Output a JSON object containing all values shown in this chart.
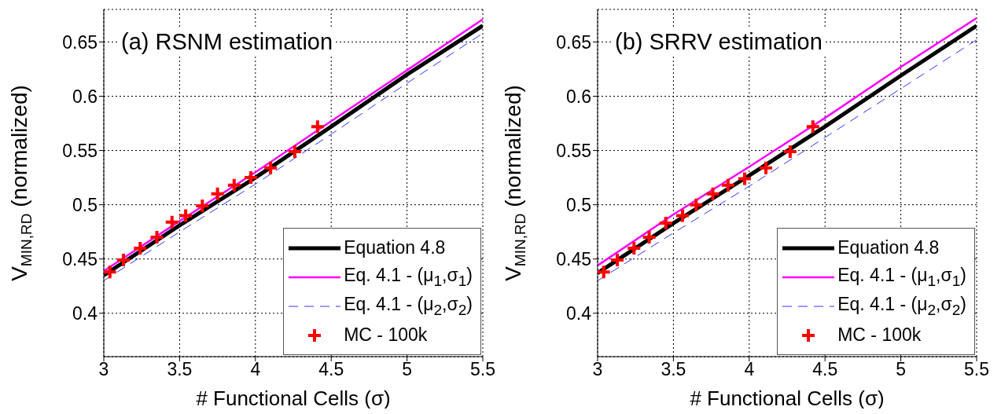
{
  "chart_data": [
    {
      "type": "line",
      "title": "(a) RSNM estimation",
      "xlabel": "# Functional Cells (σ)",
      "ylabel": "V$_{MIN,RD}$ (normalized)",
      "xlim": [
        3,
        5.5
      ],
      "ylim": [
        0.36,
        0.68
      ],
      "xticks": [
        3,
        3.5,
        4,
        4.5,
        5,
        5.5
      ],
      "yticks": [
        0.4,
        0.45,
        0.5,
        0.55,
        0.6,
        0.65
      ],
      "grid": true,
      "legend": "bottom right",
      "series": [
        {
          "name": "Equation 4.8",
          "color": "#000000",
          "line_style": "solid",
          "marker": "none",
          "x": [
            3,
            3.5,
            4,
            4.5,
            5,
            5.5
          ],
          "values": [
            0.435,
            0.481,
            0.525,
            0.572,
            0.62,
            0.665
          ]
        },
        {
          "name": "Eq. 4.1 - (μ$_{1}$,σ$_{1}$)",
          "color": "#ff00ff",
          "line_style": "solid",
          "marker": "none",
          "x": [
            3,
            3.5,
            4,
            4.5,
            5,
            5.5
          ],
          "values": [
            0.439,
            0.485,
            0.53,
            0.577,
            0.624,
            0.671
          ]
        },
        {
          "name": "Eq. 4.1 - (μ$_{2}$,σ$_{2}$)",
          "color": "#3333ff",
          "line_style": "dashed",
          "marker": "none",
          "x": [
            3,
            3.5,
            4,
            4.5,
            5,
            5.5
          ],
          "values": [
            0.43,
            0.475,
            0.519,
            0.565,
            0.612,
            0.658
          ]
        },
        {
          "name": "MC - 100k",
          "type": "scatter",
          "color": "#ff0000",
          "marker": "cross",
          "x": [
            3.04,
            3.13,
            3.24,
            3.35,
            3.45,
            3.54,
            3.65,
            3.75,
            3.86,
            3.97,
            4.1,
            4.26,
            4.41
          ],
          "values": [
            0.438,
            0.449,
            0.46,
            0.47,
            0.484,
            0.49,
            0.499,
            0.51,
            0.518,
            0.525,
            0.534,
            0.549,
            0.572
          ]
        }
      ]
    },
    {
      "type": "line",
      "title": "(b) SRRV estimation",
      "xlabel": "# Functional Cells (σ)",
      "ylabel": "V$_{MIN,RD}$ (normalized)",
      "xlim": [
        3,
        5.5
      ],
      "ylim": [
        0.36,
        0.68
      ],
      "xticks": [
        3,
        3.5,
        4,
        4.5,
        5,
        5.5
      ],
      "yticks": [
        0.4,
        0.45,
        0.5,
        0.55,
        0.6,
        0.65
      ],
      "grid": true,
      "legend": "bottom right",
      "series": [
        {
          "name": "Equation 4.8",
          "color": "#000000",
          "line_style": "solid",
          "marker": "none",
          "x": [
            3,
            3.5,
            4,
            4.5,
            5,
            5.5
          ],
          "values": [
            0.437,
            0.483,
            0.527,
            0.572,
            0.619,
            0.665
          ]
        },
        {
          "name": "Eq. 4.1 - (μ$_{1}$,σ$_{1}$)",
          "color": "#ff00ff",
          "line_style": "solid",
          "marker": "none",
          "x": [
            3,
            3.5,
            4,
            4.5,
            5,
            5.5
          ],
          "values": [
            0.444,
            0.491,
            0.535,
            0.58,
            0.627,
            0.672
          ]
        },
        {
          "name": "Eq. 4.1 - (μ$_{2}$,σ$_{2}$)",
          "color": "#3333ff",
          "line_style": "dashed",
          "marker": "none",
          "x": [
            3,
            3.5,
            4,
            4.5,
            5,
            5.5
          ],
          "values": [
            0.43,
            0.474,
            0.517,
            0.562,
            0.607,
            0.652
          ]
        },
        {
          "name": "MC - 100k",
          "type": "scatter",
          "color": "#ff0000",
          "marker": "cross",
          "x": [
            3.04,
            3.13,
            3.24,
            3.34,
            3.45,
            3.56,
            3.65,
            3.76,
            3.86,
            3.97,
            4.11,
            4.27,
            4.42
          ],
          "values": [
            0.438,
            0.449,
            0.46,
            0.47,
            0.483,
            0.49,
            0.5,
            0.51,
            0.518,
            0.524,
            0.534,
            0.549,
            0.572
          ]
        }
      ]
    }
  ]
}
